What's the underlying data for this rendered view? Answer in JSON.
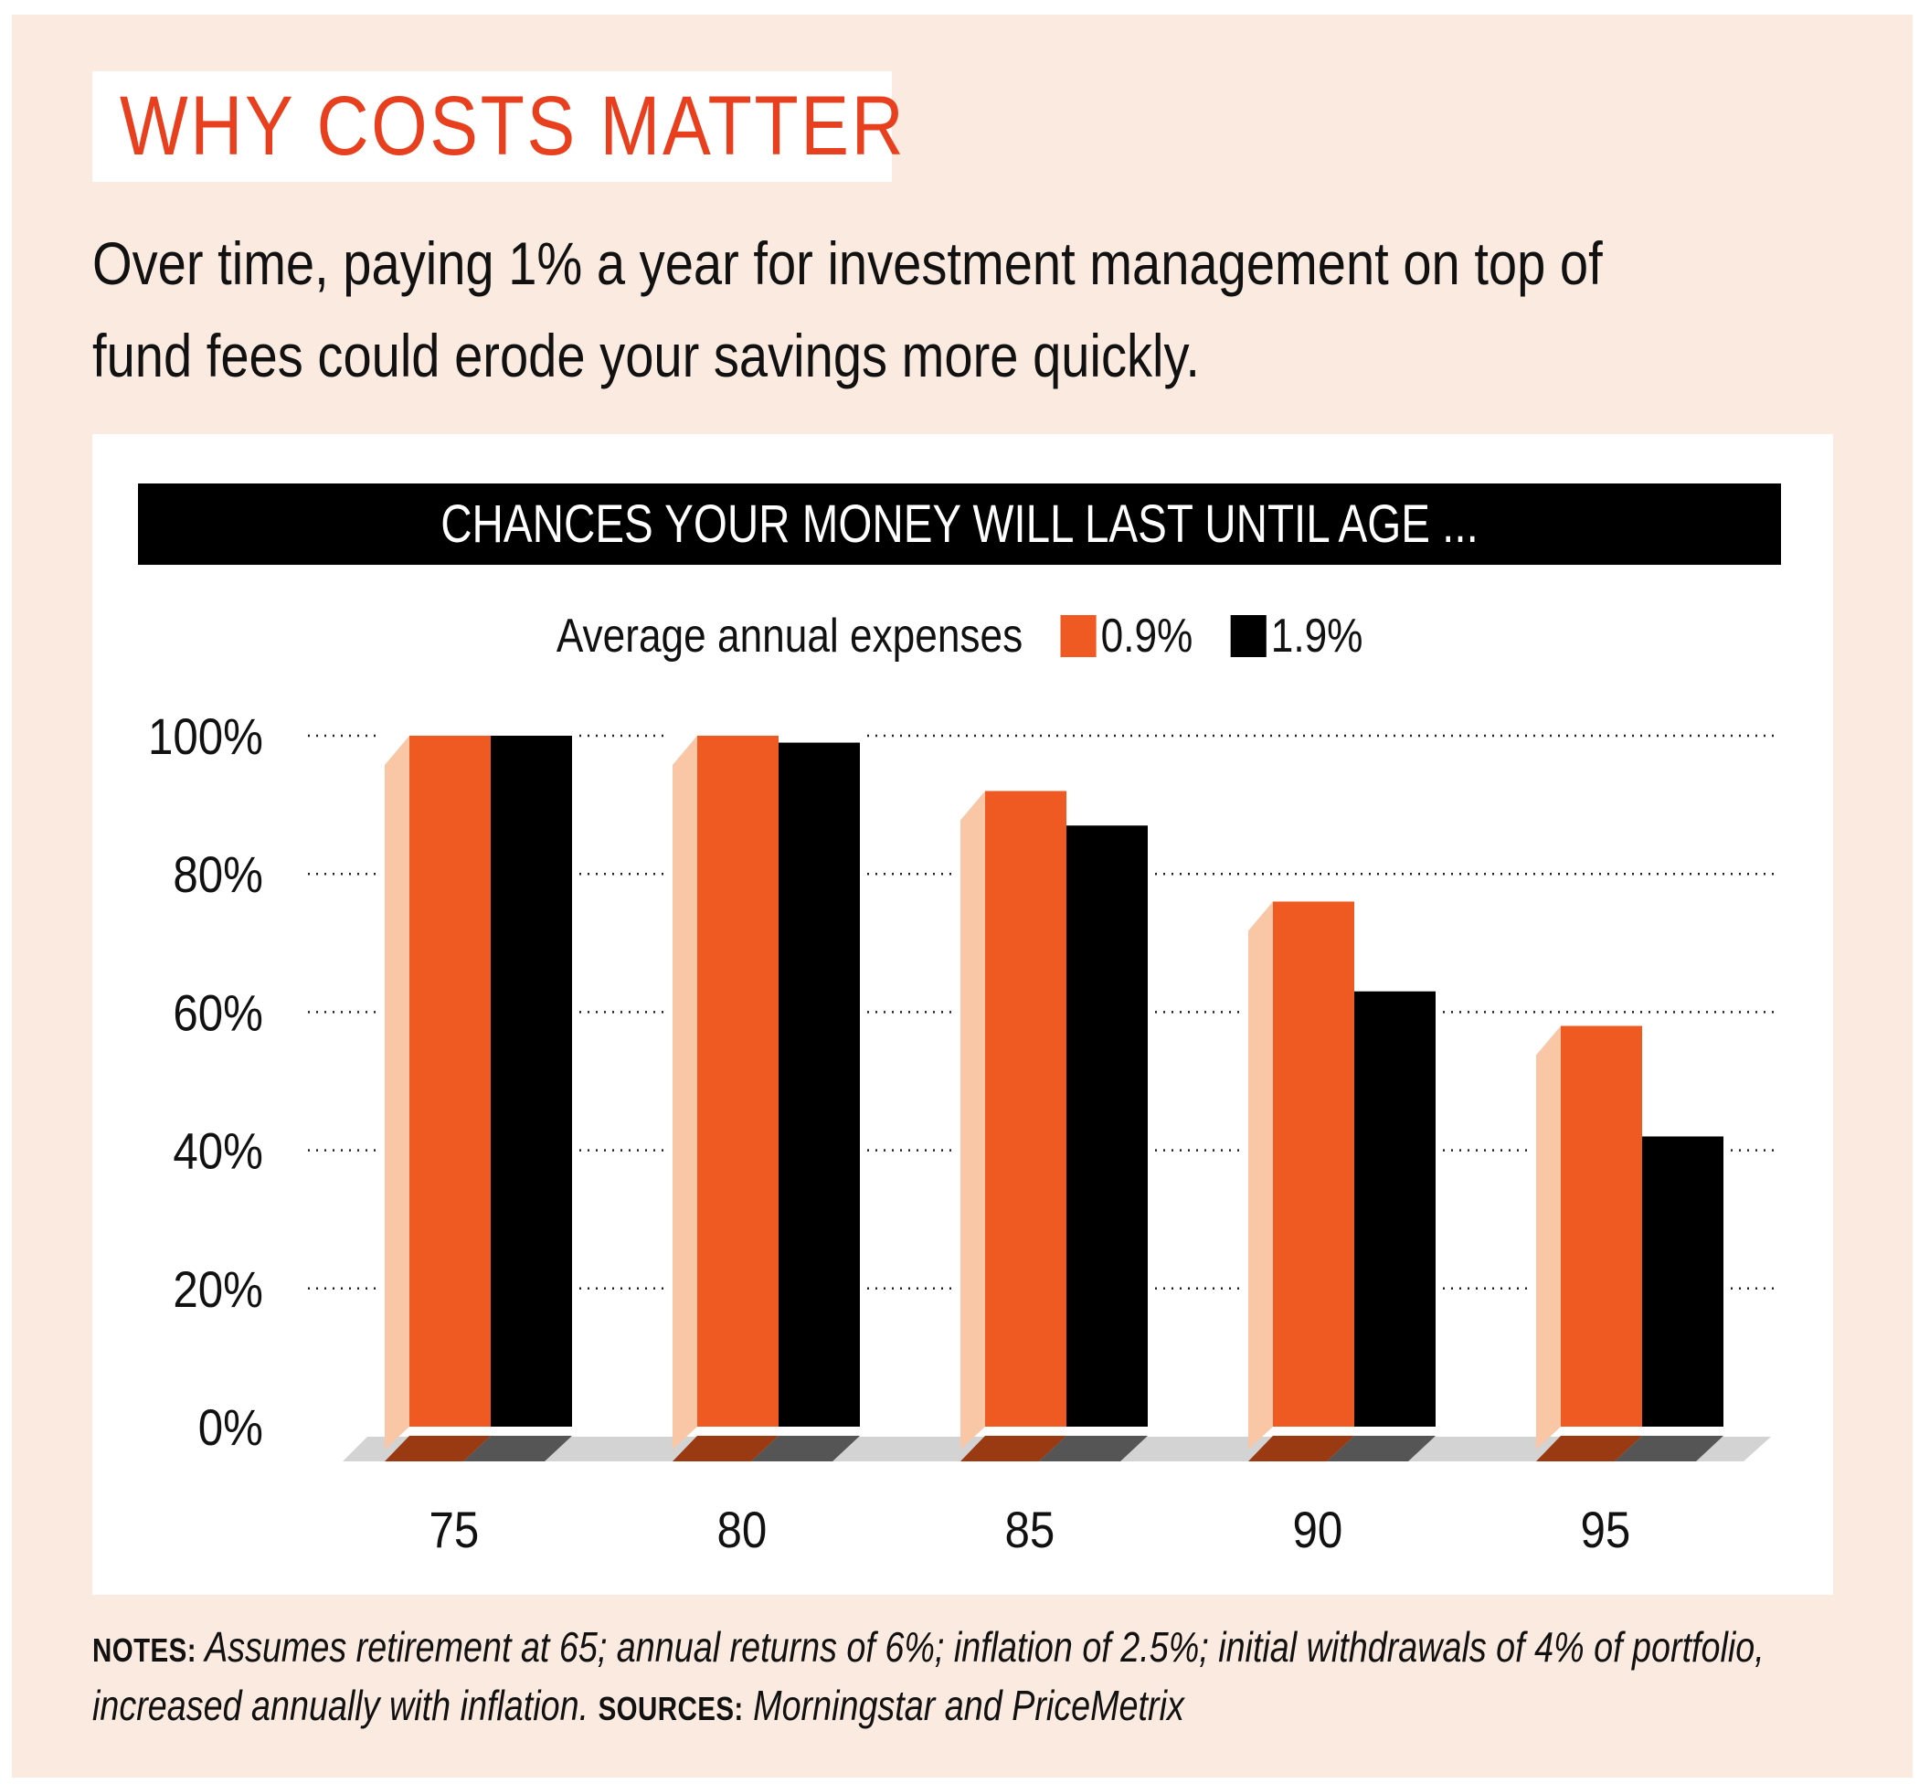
{
  "title": "WHY COSTS MATTER",
  "subtitle": "Over time, paying 1% a year for investment management on top of fund fees could erode your savings more quickly.",
  "colors": {
    "accent": "#e8401f",
    "series_a": "#ef5a23",
    "series_b": "#000000",
    "panel_bg": "#fbeadf",
    "side": "#f9c7a6",
    "floor": "#d3d3d3"
  },
  "chart_data": {
    "type": "bar",
    "title": "CHANCES YOUR MONEY WILL LAST UNTIL AGE ...",
    "legend_title": "Average annual expenses",
    "legend_position": "top-center",
    "xlabel": "",
    "ylabel": "",
    "categories": [
      "75",
      "80",
      "85",
      "90",
      "95"
    ],
    "series": [
      {
        "name": "0.9%",
        "color": "#ef5a23",
        "values": [
          100,
          100,
          92,
          76,
          58
        ]
      },
      {
        "name": "1.9%",
        "color": "#000000",
        "values": [
          100,
          99,
          87,
          63,
          42
        ]
      }
    ],
    "ylim": [
      0,
      100
    ],
    "yticks": [
      0,
      20,
      40,
      60,
      80,
      100
    ],
    "ytick_labels": [
      "0%",
      "20%",
      "40%",
      "60%",
      "80%",
      "100%"
    ],
    "grid": "dotted horizontal"
  },
  "notes": {
    "notes_label": "NOTES:",
    "notes_text": " Assumes retirement at 65; annual returns of 6%; inflation of 2.5%; initial withdrawals of 4% of portfolio, increased annually with inflation. ",
    "sources_label": "SOURCES:",
    "sources_text": " Morningstar and PriceMetrix"
  }
}
